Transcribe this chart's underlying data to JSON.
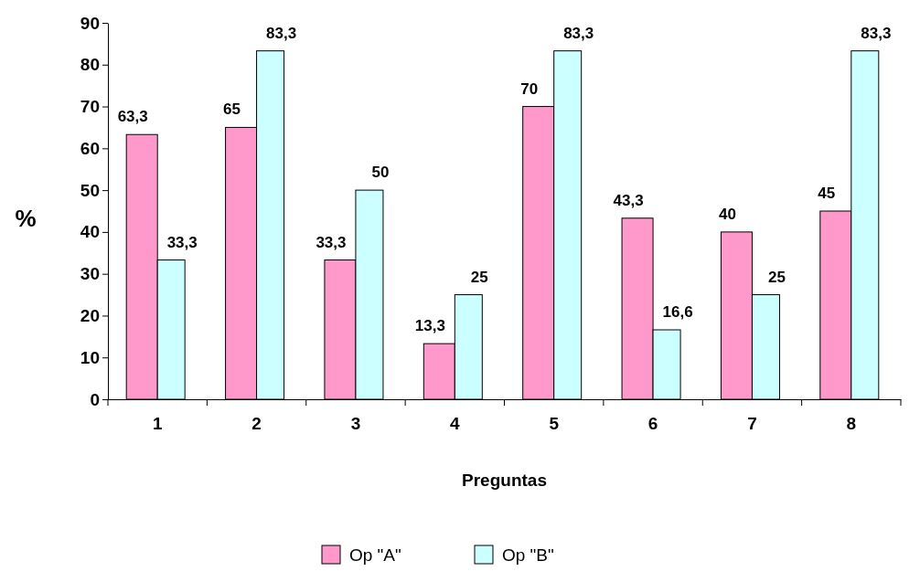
{
  "chart_data": {
    "type": "bar",
    "xlabel": "Preguntas",
    "ylabel": "%",
    "categories": [
      "1",
      "2",
      "3",
      "4",
      "5",
      "6",
      "7",
      "8"
    ],
    "series": [
      {
        "name": "Op \"A\"",
        "color": "#ff99cc",
        "values": [
          63.3,
          65,
          33.3,
          13.3,
          70,
          43.3,
          40,
          45
        ],
        "value_labels": [
          "63,3",
          "65",
          "33,3",
          "13,3",
          "70",
          "43,3",
          "40",
          "45"
        ]
      },
      {
        "name": "Op \"B\"",
        "color": "#ccffff",
        "values": [
          33.3,
          83.3,
          50,
          25,
          83.3,
          16.6,
          25,
          83.3
        ],
        "value_labels": [
          "33,3",
          "83,3",
          "50",
          "25",
          "83,3",
          "16,6",
          "25",
          "83,3"
        ]
      }
    ],
    "ylim": [
      0,
      90
    ],
    "yticks": [
      0,
      10,
      20,
      30,
      40,
      50,
      60,
      70,
      80,
      90
    ],
    "grid": false,
    "legend": "bottom"
  }
}
